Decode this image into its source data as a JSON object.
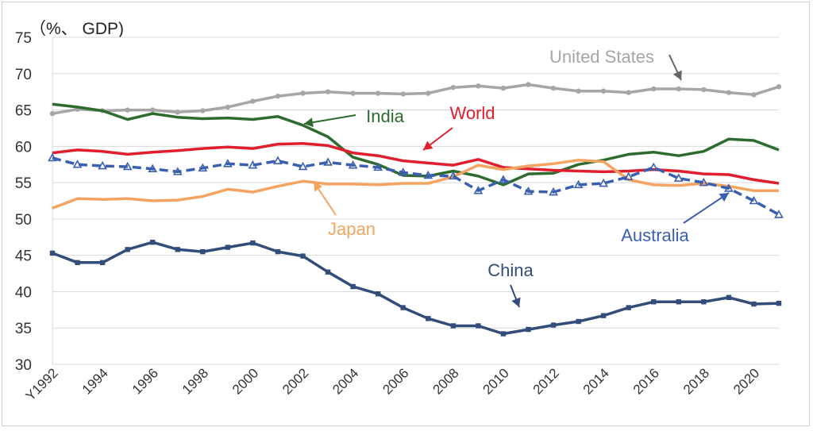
{
  "chart_data": {
    "type": "line",
    "title": "",
    "ylabel": "（%、 GDP)",
    "xlabel": "",
    "ylim": [
      30,
      75
    ],
    "yticks": [
      30,
      35,
      40,
      45,
      50,
      55,
      60,
      65,
      70,
      75
    ],
    "grid": true,
    "x": [
      1992,
      1993,
      1994,
      1995,
      1996,
      1997,
      1998,
      1999,
      2000,
      2001,
      2002,
      2003,
      2004,
      2005,
      2006,
      2007,
      2008,
      2009,
      2010,
      2011,
      2012,
      2013,
      2014,
      2015,
      2016,
      2017,
      2018,
      2019,
      2020,
      2021
    ],
    "xtick_labels": [
      {
        "x": 1992,
        "label": "Y1992"
      },
      {
        "x": 1994,
        "label": "1994"
      },
      {
        "x": 1996,
        "label": "1996"
      },
      {
        "x": 1998,
        "label": "1998"
      },
      {
        "x": 2000,
        "label": "2000"
      },
      {
        "x": 2002,
        "label": "2002"
      },
      {
        "x": 2004,
        "label": "2004"
      },
      {
        "x": 2006,
        "label": "2006"
      },
      {
        "x": 2008,
        "label": "2008"
      },
      {
        "x": 2010,
        "label": "2010"
      },
      {
        "x": 2012,
        "label": "2012"
      },
      {
        "x": 2014,
        "label": "2014"
      },
      {
        "x": 2016,
        "label": "2016"
      },
      {
        "x": 2018,
        "label": "2018"
      },
      {
        "x": 2020,
        "label": "2020"
      }
    ],
    "series": [
      {
        "name": "United States",
        "color": "#a6a6a6",
        "marker": "dot",
        "dash": false,
        "values": [
          64.5,
          65.1,
          64.9,
          65.0,
          65.0,
          64.7,
          64.9,
          65.4,
          66.2,
          66.9,
          67.3,
          67.5,
          67.3,
          67.3,
          67.2,
          67.3,
          68.1,
          68.3,
          68.0,
          68.5,
          68.0,
          67.6,
          67.6,
          67.4,
          67.9,
          67.9,
          67.8,
          67.4,
          67.1,
          68.2
        ]
      },
      {
        "name": "India",
        "color": "#2e6b2e",
        "marker": "none",
        "dash": false,
        "values": [
          65.8,
          65.4,
          64.9,
          63.7,
          64.5,
          64.0,
          63.8,
          63.9,
          63.7,
          64.1,
          62.9,
          61.3,
          58.5,
          57.5,
          56.0,
          55.9,
          56.6,
          55.9,
          54.7,
          56.2,
          56.3,
          57.5,
          58.1,
          58.9,
          59.2,
          58.7,
          59.3,
          61.0,
          60.8,
          59.5
        ]
      },
      {
        "name": "World",
        "color": "#e01e2d",
        "marker": "none",
        "dash": false,
        "values": [
          59.1,
          59.5,
          59.3,
          58.9,
          59.2,
          59.4,
          59.7,
          59.9,
          59.7,
          60.3,
          60.4,
          60.1,
          59.1,
          58.7,
          58.0,
          57.7,
          57.4,
          58.2,
          57.1,
          56.9,
          56.7,
          56.6,
          56.5,
          56.6,
          56.8,
          56.6,
          56.2,
          56.1,
          55.4,
          54.9
        ]
      },
      {
        "name": "Japan",
        "color": "#f4a460",
        "marker": "none",
        "dash": false,
        "values": [
          51.5,
          52.8,
          52.7,
          52.8,
          52.5,
          52.6,
          53.1,
          54.1,
          53.7,
          54.5,
          55.2,
          54.8,
          54.8,
          54.7,
          54.9,
          54.9,
          55.8,
          57.4,
          56.8,
          57.3,
          57.6,
          58.1,
          57.9,
          55.4,
          54.7,
          54.6,
          54.9,
          54.5,
          53.9,
          53.9
        ]
      },
      {
        "name": "Australia",
        "color": "#3a5fb0",
        "marker": "triangle",
        "dash": true,
        "values": [
          58.4,
          57.5,
          57.3,
          57.2,
          56.9,
          56.5,
          57.0,
          57.6,
          57.4,
          58.0,
          57.2,
          57.8,
          57.4,
          57.1,
          56.4,
          56.0,
          55.9,
          53.9,
          55.4,
          53.8,
          53.7,
          54.7,
          54.9,
          55.8,
          57.1,
          55.6,
          55.0,
          54.2,
          52.5,
          50.6
        ]
      },
      {
        "name": "China",
        "color": "#334d7a",
        "marker": "square",
        "dash": false,
        "values": [
          45.3,
          44.0,
          44.0,
          45.8,
          46.8,
          45.8,
          45.5,
          46.1,
          46.7,
          45.5,
          44.9,
          42.7,
          40.7,
          39.7,
          37.8,
          36.3,
          35.3,
          35.3,
          34.2,
          34.8,
          35.4,
          35.9,
          36.7,
          37.8,
          38.6,
          38.6,
          38.6,
          39.2,
          38.3,
          38.4
        ]
      }
    ],
    "annotations": [
      {
        "text": "United States",
        "series": "United States"
      },
      {
        "text": "India",
        "series": "India"
      },
      {
        "text": "World",
        "series": "World"
      },
      {
        "text": "Japan",
        "series": "Japan"
      },
      {
        "text": "Australia",
        "series": "Australia"
      },
      {
        "text": "China",
        "series": "China"
      }
    ]
  }
}
